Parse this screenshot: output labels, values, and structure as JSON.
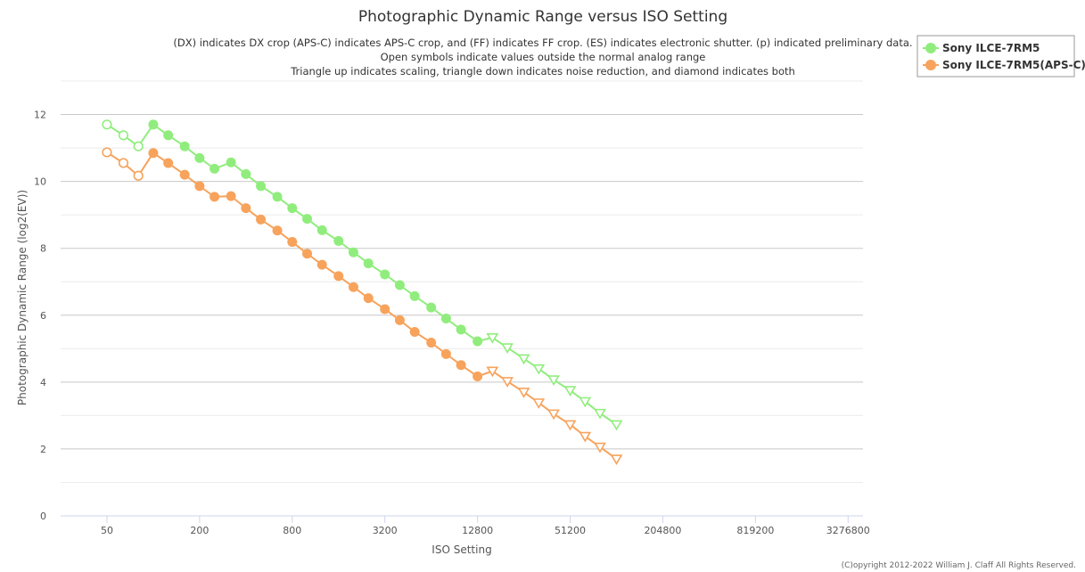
{
  "chart_data": {
    "type": "line",
    "title": "Photographic Dynamic Range versus ISO Setting",
    "subtitle": [
      "(DX) indicates DX crop (APS-C) indicates APS-C crop, and (FF) indicates FF crop. (ES) indicates electronic shutter. (p) indicated preliminary data.",
      "Open symbols indicate values outside the normal analog range",
      "Triangle up indicates scaling, triangle down indicates noise reduction, and diamond indicates both"
    ],
    "xlabel": "ISO Setting",
    "ylabel": "Photographic Dynamic Range (log2(EV))",
    "x_scale": "log2",
    "xlim": [
      25,
      4096000
    ],
    "ylim": [
      0,
      13
    ],
    "x_ticks": [
      50,
      200,
      800,
      3200,
      12800,
      51200,
      204800,
      819200,
      3276800
    ],
    "y_ticks": [
      0,
      2,
      4,
      6,
      8,
      10,
      12
    ],
    "grid": "horizontal",
    "legend": "top-right",
    "copyright": "(C)opyright 2012-2022 William J. Claff All Rights Reserved.",
    "series": [
      {
        "name": "Sony ILCE-7RM5",
        "color": "#90ed7d",
        "points": [
          {
            "x": 50,
            "y": 11.7,
            "marker": "open-circle"
          },
          {
            "x": 64,
            "y": 11.38,
            "marker": "open-circle"
          },
          {
            "x": 80,
            "y": 11.05,
            "marker": "open-circle"
          },
          {
            "x": 100,
            "y": 11.7,
            "marker": "circle"
          },
          {
            "x": 125,
            "y": 11.38,
            "marker": "circle"
          },
          {
            "x": 160,
            "y": 11.05,
            "marker": "circle"
          },
          {
            "x": 200,
            "y": 10.7,
            "marker": "circle"
          },
          {
            "x": 250,
            "y": 10.38,
            "marker": "circle"
          },
          {
            "x": 320,
            "y": 10.57,
            "marker": "circle"
          },
          {
            "x": 400,
            "y": 10.22,
            "marker": "circle"
          },
          {
            "x": 500,
            "y": 9.86,
            "marker": "circle"
          },
          {
            "x": 640,
            "y": 9.54,
            "marker": "circle"
          },
          {
            "x": 800,
            "y": 9.2,
            "marker": "circle"
          },
          {
            "x": 1000,
            "y": 8.88,
            "marker": "circle"
          },
          {
            "x": 1250,
            "y": 8.54,
            "marker": "circle"
          },
          {
            "x": 1600,
            "y": 8.22,
            "marker": "circle"
          },
          {
            "x": 2000,
            "y": 7.88,
            "marker": "circle"
          },
          {
            "x": 2500,
            "y": 7.55,
            "marker": "circle"
          },
          {
            "x": 3200,
            "y": 7.22,
            "marker": "circle"
          },
          {
            "x": 4000,
            "y": 6.9,
            "marker": "circle"
          },
          {
            "x": 5000,
            "y": 6.57,
            "marker": "circle"
          },
          {
            "x": 6400,
            "y": 6.23,
            "marker": "circle"
          },
          {
            "x": 8000,
            "y": 5.9,
            "marker": "circle"
          },
          {
            "x": 10000,
            "y": 5.57,
            "marker": "circle"
          },
          {
            "x": 12800,
            "y": 5.22,
            "marker": "circle"
          },
          {
            "x": 16000,
            "y": 5.33,
            "marker": "open-triangle-down"
          },
          {
            "x": 20000,
            "y": 5.03,
            "marker": "open-triangle-down"
          },
          {
            "x": 25600,
            "y": 4.7,
            "marker": "open-triangle-down"
          },
          {
            "x": 32000,
            "y": 4.4,
            "marker": "open-triangle-down"
          },
          {
            "x": 40000,
            "y": 4.07,
            "marker": "open-triangle-down"
          },
          {
            "x": 51200,
            "y": 3.75,
            "marker": "open-triangle-down"
          },
          {
            "x": 64000,
            "y": 3.42,
            "marker": "open-triangle-down"
          },
          {
            "x": 80000,
            "y": 3.07,
            "marker": "open-triangle-down"
          },
          {
            "x": 102400,
            "y": 2.73,
            "marker": "open-triangle-down"
          }
        ]
      },
      {
        "name": "Sony ILCE-7RM5(APS-C)",
        "color": "#f7a35c",
        "points": [
          {
            "x": 50,
            "y": 10.87,
            "marker": "open-circle"
          },
          {
            "x": 64,
            "y": 10.55,
            "marker": "open-circle"
          },
          {
            "x": 80,
            "y": 10.17,
            "marker": "open-circle"
          },
          {
            "x": 100,
            "y": 10.85,
            "marker": "circle"
          },
          {
            "x": 125,
            "y": 10.55,
            "marker": "circle"
          },
          {
            "x": 160,
            "y": 10.2,
            "marker": "circle"
          },
          {
            "x": 200,
            "y": 9.86,
            "marker": "circle"
          },
          {
            "x": 250,
            "y": 9.54,
            "marker": "circle"
          },
          {
            "x": 320,
            "y": 9.56,
            "marker": "circle"
          },
          {
            "x": 400,
            "y": 9.2,
            "marker": "circle"
          },
          {
            "x": 500,
            "y": 8.86,
            "marker": "circle"
          },
          {
            "x": 640,
            "y": 8.53,
            "marker": "circle"
          },
          {
            "x": 800,
            "y": 8.19,
            "marker": "circle"
          },
          {
            "x": 1000,
            "y": 7.84,
            "marker": "circle"
          },
          {
            "x": 1250,
            "y": 7.51,
            "marker": "circle"
          },
          {
            "x": 1600,
            "y": 7.17,
            "marker": "circle"
          },
          {
            "x": 2000,
            "y": 6.84,
            "marker": "circle"
          },
          {
            "x": 2500,
            "y": 6.51,
            "marker": "circle"
          },
          {
            "x": 3200,
            "y": 6.18,
            "marker": "circle"
          },
          {
            "x": 4000,
            "y": 5.85,
            "marker": "circle"
          },
          {
            "x": 5000,
            "y": 5.5,
            "marker": "circle"
          },
          {
            "x": 6400,
            "y": 5.18,
            "marker": "circle"
          },
          {
            "x": 8000,
            "y": 4.84,
            "marker": "circle"
          },
          {
            "x": 10000,
            "y": 4.51,
            "marker": "circle"
          },
          {
            "x": 12800,
            "y": 4.17,
            "marker": "circle"
          },
          {
            "x": 16000,
            "y": 4.33,
            "marker": "open-triangle-down"
          },
          {
            "x": 20000,
            "y": 4.02,
            "marker": "open-triangle-down"
          },
          {
            "x": 25600,
            "y": 3.7,
            "marker": "open-triangle-down"
          },
          {
            "x": 32000,
            "y": 3.38,
            "marker": "open-triangle-down"
          },
          {
            "x": 40000,
            "y": 3.05,
            "marker": "open-triangle-down"
          },
          {
            "x": 51200,
            "y": 2.73,
            "marker": "open-triangle-down"
          },
          {
            "x": 64000,
            "y": 2.38,
            "marker": "open-triangle-down"
          },
          {
            "x": 80000,
            "y": 2.06,
            "marker": "open-triangle-down"
          },
          {
            "x": 102400,
            "y": 1.7,
            "marker": "open-triangle-down"
          }
        ]
      }
    ]
  }
}
